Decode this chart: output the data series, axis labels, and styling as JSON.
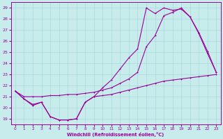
{
  "xlabel": "Windchill (Refroidissement éolien,°C)",
  "bg_color": "#c8ecec",
  "grid_color": "#a8d8d8",
  "line_color": "#990099",
  "xlim": [
    -0.5,
    23.5
  ],
  "ylim": [
    18.5,
    29.5
  ],
  "yticks": [
    19,
    20,
    21,
    22,
    23,
    24,
    25,
    26,
    27,
    28,
    29
  ],
  "xticks": [
    0,
    1,
    2,
    3,
    4,
    5,
    6,
    7,
    8,
    9,
    10,
    11,
    12,
    13,
    14,
    15,
    16,
    17,
    18,
    19,
    20,
    21,
    22,
    23
  ],
  "line1_x": [
    0,
    1,
    2,
    3,
    4,
    5,
    6,
    7,
    8,
    9,
    10,
    11,
    12,
    13,
    14,
    15,
    16,
    17,
    18,
    19,
    20,
    21,
    22,
    23
  ],
  "line1_y": [
    21.5,
    20.8,
    20.2,
    20.5,
    19.2,
    18.9,
    18.9,
    19.0,
    20.5,
    21.0,
    21.1,
    21.2,
    21.4,
    21.6,
    21.8,
    22.0,
    22.2,
    22.4,
    22.5,
    22.6,
    22.7,
    22.8,
    22.9,
    23.0
  ],
  "line2_x": [
    0,
    1,
    2,
    3,
    4,
    5,
    6,
    7,
    8,
    9,
    10,
    11,
    12,
    13,
    14,
    15,
    16,
    17,
    18,
    19,
    20,
    21,
    22,
    23
  ],
  "line2_y": [
    21.5,
    20.8,
    20.3,
    20.5,
    19.2,
    18.9,
    18.9,
    19.0,
    20.5,
    21.0,
    21.8,
    22.5,
    23.5,
    24.5,
    25.3,
    29.0,
    28.5,
    29.0,
    28.8,
    28.9,
    28.2,
    26.8,
    25.1,
    23.2
  ],
  "line3_x": [
    0,
    1,
    2,
    3,
    4,
    5,
    6,
    7,
    8,
    9,
    10,
    11,
    12,
    13,
    14,
    15,
    16,
    17,
    18,
    19,
    20,
    21,
    22,
    23
  ],
  "line3_y": [
    21.5,
    21.0,
    21.0,
    21.0,
    21.1,
    21.1,
    21.2,
    21.2,
    21.3,
    21.4,
    21.6,
    21.8,
    22.2,
    22.6,
    23.2,
    25.5,
    26.5,
    28.3,
    28.6,
    29.0,
    28.2,
    26.7,
    24.9,
    23.2
  ]
}
